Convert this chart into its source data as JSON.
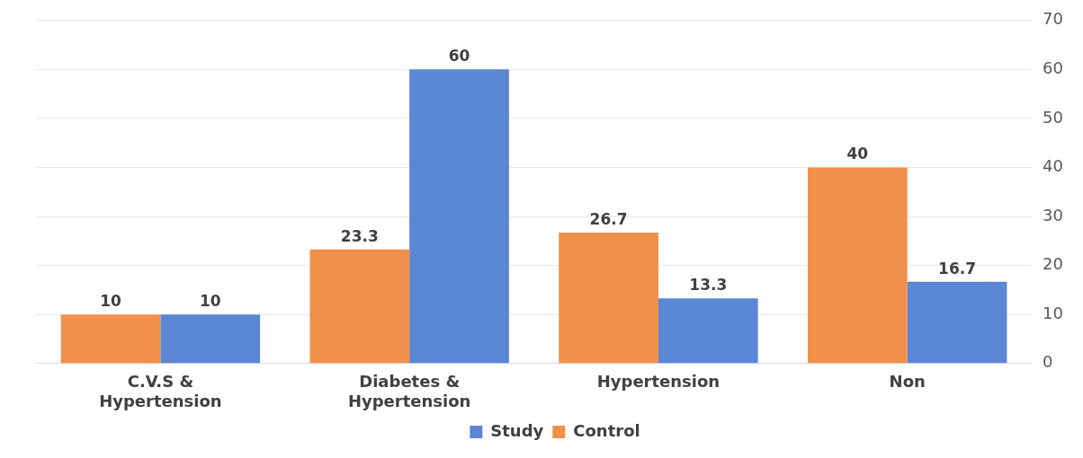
{
  "chart_data": {
    "type": "bar",
    "categories": [
      "C.V.S & Hypertension",
      "Diabetes & Hypertension",
      "Hypertension",
      "Non"
    ],
    "series": [
      {
        "name": "Control",
        "color": "#f0904a",
        "values": [
          10,
          23.3,
          26.7,
          40
        ]
      },
      {
        "name": "Study",
        "color": "#5b87d4",
        "values": [
          10,
          60,
          13.3,
          16.7
        ]
      }
    ],
    "ylim": [
      0,
      70
    ],
    "yticks": [
      0,
      10,
      20,
      30,
      40,
      50,
      60,
      70
    ],
    "grid": "y",
    "legend": "bottom",
    "data_labels": true
  }
}
